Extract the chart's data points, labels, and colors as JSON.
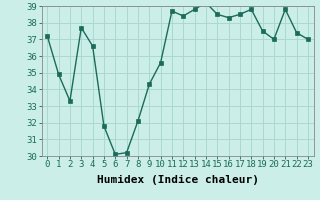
{
  "x": [
    0,
    1,
    2,
    3,
    4,
    5,
    6,
    7,
    8,
    9,
    10,
    11,
    12,
    13,
    14,
    15,
    16,
    17,
    18,
    19,
    20,
    21,
    22,
    23
  ],
  "y": [
    37.2,
    34.9,
    33.3,
    37.7,
    36.6,
    31.8,
    30.1,
    30.2,
    32.1,
    34.3,
    35.6,
    38.7,
    38.4,
    38.8,
    39.2,
    38.5,
    38.3,
    38.5,
    38.8,
    37.5,
    37.0,
    38.8,
    37.4,
    37.0
  ],
  "line_color": "#1a6b5a",
  "bg_color": "#cceee8",
  "grid_color": "#aad8d0",
  "xlabel": "Humidex (Indice chaleur)",
  "ylim": [
    30,
    39
  ],
  "yticks": [
    30,
    31,
    32,
    33,
    34,
    35,
    36,
    37,
    38,
    39
  ],
  "xticks": [
    0,
    1,
    2,
    3,
    4,
    5,
    6,
    7,
    8,
    9,
    10,
    11,
    12,
    13,
    14,
    15,
    16,
    17,
    18,
    19,
    20,
    21,
    22,
    23
  ],
  "marker": "s",
  "marker_size": 2.5,
  "line_width": 1.0,
  "xlabel_fontsize": 8,
  "tick_fontsize": 6.5
}
